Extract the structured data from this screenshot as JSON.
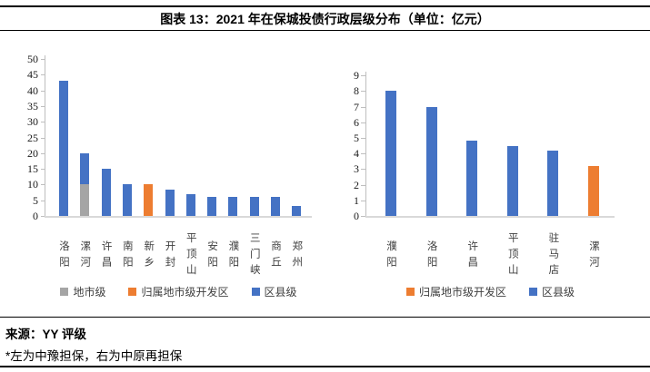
{
  "header": {
    "title": "图表 13：2021 年在保城投债行政层级分布（单位：亿元）"
  },
  "footer": {
    "source": "来源：YY 评级",
    "note": "*左为中豫担保，右为中原再担保"
  },
  "colors": {
    "blue": "#4472C4",
    "orange": "#ED7D31",
    "gray": "#A5A5A5",
    "axis_line": "#BFBFBF",
    "baseline": "#D9D9D9"
  },
  "chart_data": [
    {
      "type": "bar",
      "stacked": true,
      "grid": false,
      "legend_position": "bottom",
      "categories": [
        "洛阳",
        "漯河",
        "许昌",
        "南阳",
        "新乡",
        "开封",
        "平顶山",
        "安阳",
        "濮阳",
        "三门峡",
        "商丘",
        "郑州"
      ],
      "series": [
        {
          "name": "地市级",
          "color": "#A5A5A5",
          "values": [
            0,
            10,
            0,
            0,
            0,
            0,
            0,
            0,
            0,
            0,
            0,
            0
          ]
        },
        {
          "name": "归属地市级开发区",
          "color": "#ED7D31",
          "values": [
            0,
            0,
            0,
            0,
            10,
            0,
            0,
            0,
            0,
            0,
            0,
            0
          ]
        },
        {
          "name": "区县级",
          "color": "#4472C4",
          "values": [
            43,
            10,
            15,
            10,
            0,
            8.5,
            7,
            6,
            6,
            6,
            6,
            3.2
          ]
        }
      ],
      "ylim": [
        0,
        50
      ],
      "ystep": 5
    },
    {
      "type": "bar",
      "stacked": true,
      "grid": false,
      "legend_position": "bottom",
      "categories": [
        "濮阳",
        "洛阳",
        "许昌",
        "平顶山",
        "驻马店",
        "漯河"
      ],
      "series": [
        {
          "name": "归属地市级开发区",
          "color": "#ED7D31",
          "values": [
            0,
            0,
            0,
            0,
            0,
            3.2
          ]
        },
        {
          "name": "区县级",
          "color": "#4472C4",
          "values": [
            8,
            7,
            4.8,
            4.5,
            4.2,
            0
          ]
        }
      ],
      "ylim": [
        0,
        9
      ],
      "ystep": 1
    }
  ]
}
